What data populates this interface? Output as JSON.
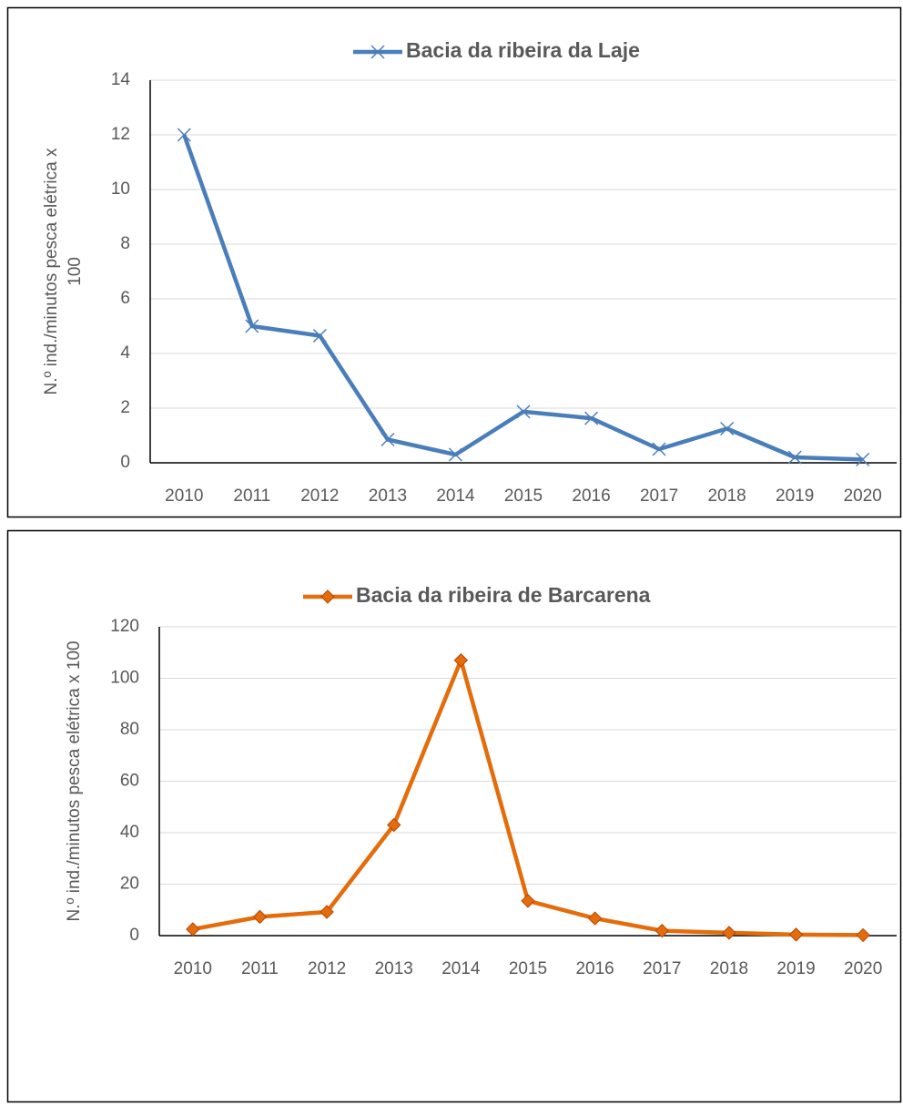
{
  "chart_data": [
    {
      "type": "line",
      "marker": "x",
      "y_label": "N.º ind./minutos pesca elétrica x 100",
      "categories": [
        "2010",
        "2011",
        "2012",
        "2013",
        "2014",
        "2015",
        "2016",
        "2017",
        "2018",
        "2019",
        "2020"
      ],
      "series": [
        {
          "name": "Bacia da ribeira da Laje",
          "color": "#4a7ebb",
          "values": [
            12,
            5,
            4.65,
            0.85,
            0.3,
            1.87,
            1.63,
            0.5,
            1.25,
            0.2,
            0.12
          ]
        }
      ],
      "ylim": [
        0,
        14
      ],
      "yticks": [
        0,
        2,
        4,
        6,
        8,
        10,
        12,
        14
      ],
      "grid": true
    },
    {
      "type": "line",
      "marker": "diamond",
      "y_label": "N.º ind./minutos pesca elétrica x 100",
      "categories": [
        "2010",
        "2011",
        "2012",
        "2013",
        "2014",
        "2015",
        "2016",
        "2017",
        "2018",
        "2019",
        "2020"
      ],
      "series": [
        {
          "name": "Bacia da ribeira de Barcarena",
          "color": "#e46c0a",
          "values": [
            2.5,
            7.3,
            9.2,
            43,
            107,
            13.5,
            6.7,
            1.9,
            1.1,
            0.4,
            0.2
          ]
        }
      ],
      "ylim": [
        0,
        120
      ],
      "yticks": [
        0,
        20,
        40,
        60,
        80,
        100,
        120
      ],
      "grid": true
    }
  ]
}
